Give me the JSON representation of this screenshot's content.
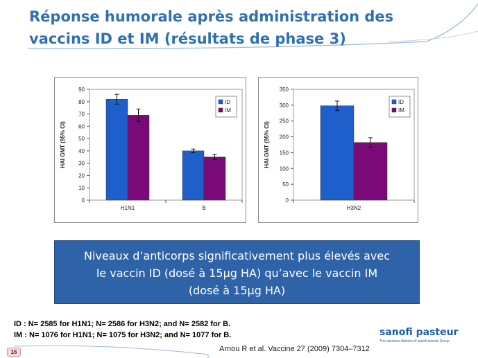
{
  "slide": {
    "title_line1": "Réponse humorale après administration des",
    "title_line2": "vaccins ID et IM (résultats de phase 3)",
    "callout_line1": "Niveaux d’anticorps significativement plus élevés avec",
    "callout_line2": "le vaccin ID (dosé à 15µg HA) qu’avec le vaccin IM",
    "callout_line3": "(dosé à 15µg HA)",
    "footnote_id": "ID : N= 2585 for H1N1; N= 2586 for H3N2; and N= 2582 for B.",
    "footnote_im": "IM : N= 1076 for H1N1; N= 1075 for H3N2; and N= 1077 for B.",
    "citation": "Arnou R et al. Vaccine 27 (2009) 7304–7312",
    "page_number": "16",
    "logo_name": "sanofi pasteur",
    "logo_tagline": "The vaccines division of sanofi-aventis Group"
  },
  "colors": {
    "title": "#2f6fb3",
    "callout_bg": "#2e63a8",
    "id_bar": "#1f5fcc",
    "im_bar": "#7a0a78"
  },
  "chart_data": [
    {
      "type": "bar",
      "ylabel": "HAI GMT (95% CI)",
      "categories": [
        "H1N1",
        "B"
      ],
      "ylim": [
        0,
        90
      ],
      "yticks": [
        0,
        10,
        20,
        30,
        40,
        50,
        60,
        70,
        80,
        90
      ],
      "legend_position": "top-right",
      "series": [
        {
          "name": "ID",
          "values": [
            82,
            40
          ],
          "err": [
            4,
            1.5
          ]
        },
        {
          "name": "IM",
          "values": [
            69,
            35
          ],
          "err": [
            5,
            2
          ]
        }
      ]
    },
    {
      "type": "bar",
      "ylabel": "HAI GMT (95% CI)",
      "categories": [
        "H3N2"
      ],
      "ylim": [
        0,
        350
      ],
      "yticks": [
        0,
        50,
        100,
        150,
        200,
        250,
        300,
        350
      ],
      "legend_position": "top-right",
      "series": [
        {
          "name": "ID",
          "values": [
            298
          ],
          "err": [
            15
          ]
        },
        {
          "name": "IM",
          "values": [
            182
          ],
          "err": [
            15
          ]
        }
      ]
    }
  ]
}
